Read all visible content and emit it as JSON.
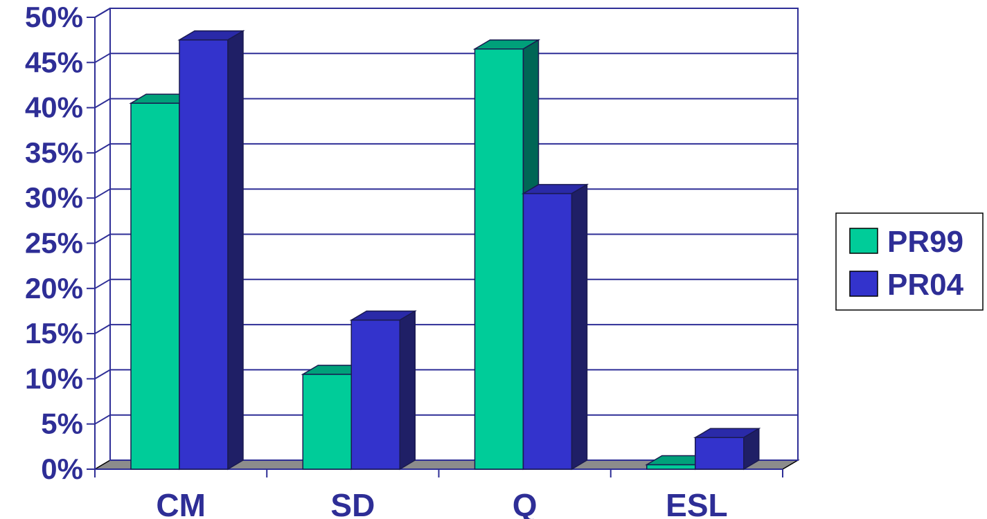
{
  "chart_data": {
    "type": "bar",
    "style": "3d-clustered-column",
    "categories": [
      "CM",
      "SD",
      "Q",
      "ESL"
    ],
    "series": [
      {
        "name": "PR99",
        "values": [
          40.5,
          10.5,
          46.5,
          0.5
        ],
        "color": "#00cc99",
        "side_color": "#006655",
        "top_color": "#00a07a"
      },
      {
        "name": "PR04",
        "values": [
          47.5,
          16.5,
          30.5,
          3.5
        ],
        "color": "#3333cc",
        "side_color": "#1f1f66",
        "top_color": "#2a2aa8"
      }
    ],
    "ylim": [
      0,
      50
    ],
    "yticks": [
      0,
      5,
      10,
      15,
      20,
      25,
      30,
      35,
      40,
      45,
      50
    ],
    "ytick_labels": [
      "0%",
      "5%",
      "10%",
      "15%",
      "20%",
      "25%",
      "30%",
      "35%",
      "40%",
      "45%",
      "50%"
    ],
    "grid": true,
    "legend_position": "right",
    "axis_color": "#2e2e96",
    "floor_color": "#8c8c8c",
    "title": "",
    "xlabel": "",
    "ylabel": ""
  }
}
